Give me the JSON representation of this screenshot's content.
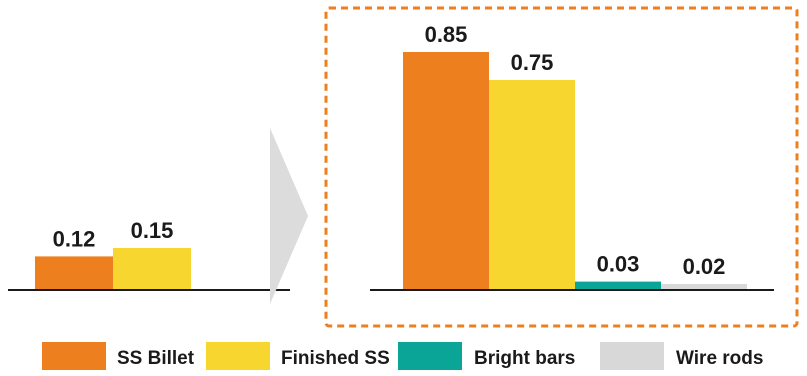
{
  "chart_data": [
    {
      "type": "bar",
      "categories": [
        "SS Billet",
        "Finished SS"
      ],
      "values": [
        0.12,
        0.15
      ],
      "labels": [
        "0.12",
        "0.15"
      ],
      "colors": [
        "#ee7f1e",
        "#f6d62f"
      ],
      "ylim": [
        0,
        0.9
      ],
      "grid": false
    },
    {
      "type": "bar",
      "categories": [
        "SS Billet",
        "Finished SS",
        "Bright bars",
        "Wire rods"
      ],
      "values": [
        0.85,
        0.75,
        0.03,
        0.02
      ],
      "labels": [
        "0.85",
        "0.75",
        "0.03",
        "0.02"
      ],
      "colors": [
        "#ee7f1e",
        "#f6d62f",
        "#0aa597",
        "#d8d8d8"
      ],
      "ylim": [
        0,
        0.9
      ],
      "grid": false,
      "highlighted": true
    }
  ],
  "legend": {
    "placement": "bottom",
    "items": [
      {
        "label": "SS Billet",
        "color": "#ee7f1e"
      },
      {
        "label": "Finished SS",
        "color": "#f6d62f"
      },
      {
        "label": "Bright bars",
        "color": "#0aa597"
      },
      {
        "label": "Wire rods",
        "color": "#d8d8d8"
      }
    ]
  },
  "colors": {
    "highlight_border": "#ee7f1e",
    "arrow": "#dcdcdc",
    "axis": "#1a1a1a"
  }
}
